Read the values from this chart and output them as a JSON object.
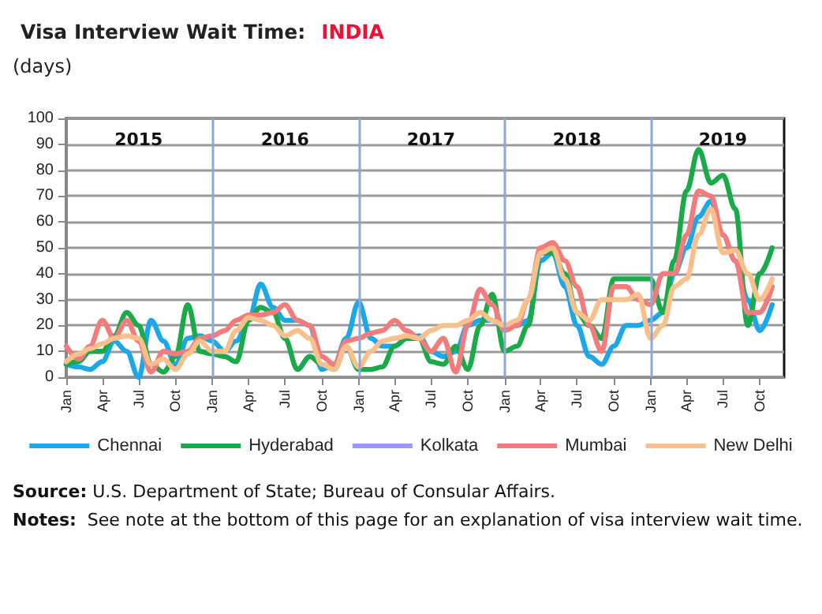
{
  "chart_data": {
    "type": "line",
    "title": "Visa Interview Wait Time:",
    "subtitle": "INDIA",
    "ylabel": "(days)",
    "x": [
      "2015-01",
      "2015-02",
      "2015-03",
      "2015-04",
      "2015-05",
      "2015-06",
      "2015-07",
      "2015-08",
      "2015-09",
      "2015-10",
      "2015-11",
      "2015-12",
      "2016-01",
      "2016-02",
      "2016-03",
      "2016-04",
      "2016-05",
      "2016-06",
      "2016-07",
      "2016-08",
      "2016-09",
      "2016-10",
      "2016-11",
      "2016-12",
      "2017-01",
      "2017-02",
      "2017-03",
      "2017-04",
      "2017-05",
      "2017-06",
      "2017-07",
      "2017-08",
      "2017-09",
      "2017-10",
      "2017-11",
      "2017-12",
      "2018-01",
      "2018-02",
      "2018-03",
      "2018-04",
      "2018-05",
      "2018-06",
      "2018-07",
      "2018-08",
      "2018-09",
      "2018-10",
      "2018-11",
      "2018-12",
      "2019-01",
      "2019-02",
      "2019-03",
      "2019-04",
      "2019-05",
      "2019-06",
      "2019-07",
      "2019-08",
      "2019-09",
      "2019-10",
      "2019-11"
    ],
    "series": [
      {
        "name": "Chennai",
        "color": "#1ba7e8",
        "values": [
          5,
          4,
          3,
          6,
          14,
          10,
          0,
          22,
          14,
          5,
          15,
          16,
          14,
          10,
          14,
          22,
          36,
          27,
          22,
          22,
          20,
          3,
          5,
          15,
          29,
          15,
          12,
          12,
          15,
          16,
          10,
          8,
          10,
          20,
          22,
          22,
          20,
          20,
          22,
          45,
          48,
          35,
          20,
          8,
          5,
          12,
          20,
          20,
          22,
          25,
          40,
          50,
          62,
          68,
          55,
          45,
          30,
          18,
          28
        ]
      },
      {
        "name": "Hyderabad",
        "color": "#1aaa4a",
        "values": [
          5,
          6,
          10,
          10,
          16,
          25,
          20,
          5,
          2,
          8,
          28,
          10,
          9,
          8,
          6,
          22,
          27,
          25,
          15,
          3,
          8,
          5,
          3,
          12,
          3,
          3,
          4,
          12,
          15,
          15,
          6,
          5,
          12,
          3,
          20,
          32,
          10,
          12,
          20,
          48,
          48,
          40,
          25,
          20,
          15,
          38,
          38,
          38,
          38,
          25,
          45,
          72,
          88,
          75,
          78,
          65,
          20,
          40,
          50
        ]
      },
      {
        "name": "Kolkata",
        "color": "#9999ff",
        "values": [
          null,
          null,
          null,
          null,
          null,
          null,
          null,
          null,
          null,
          null,
          null,
          null,
          null,
          null,
          null,
          null,
          null,
          null,
          null,
          null,
          null,
          null,
          null,
          null,
          null,
          null,
          null,
          null,
          null,
          null,
          null,
          null,
          null,
          null,
          null,
          null,
          null,
          null,
          null,
          null,
          null,
          null,
          null,
          null,
          null,
          null,
          null,
          null,
          null,
          null,
          null,
          null,
          null,
          null,
          null,
          null,
          null,
          null,
          null
        ]
      },
      {
        "name": "Mumbai",
        "color": "#f27c7c",
        "values": [
          12,
          7,
          12,
          22,
          15,
          22,
          14,
          2,
          10,
          9,
          10,
          15,
          16,
          18,
          22,
          24,
          24,
          25,
          28,
          22,
          20,
          8,
          5,
          14,
          15,
          17,
          18,
          22,
          18,
          15,
          10,
          15,
          2,
          20,
          34,
          28,
          18,
          20,
          30,
          50,
          52,
          45,
          35,
          20,
          10,
          35,
          35,
          30,
          28,
          40,
          40,
          55,
          72,
          70,
          55,
          45,
          25,
          25,
          35
        ]
      },
      {
        "name": "New Delhi",
        "color": "#f9c08c",
        "values": [
          6,
          9,
          11,
          13,
          15,
          16,
          15,
          5,
          7,
          3,
          9,
          14,
          10,
          10,
          18,
          23,
          22,
          20,
          16,
          18,
          15,
          5,
          3,
          12,
          4,
          10,
          14,
          15,
          16,
          15,
          18,
          20,
          20,
          22,
          25,
          22,
          20,
          22,
          30,
          48,
          50,
          38,
          25,
          22,
          30,
          30,
          30,
          32,
          15,
          20,
          35,
          38,
          55,
          65,
          48,
          49,
          40,
          30,
          38
        ]
      }
    ],
    "xlim": [
      "2015-01",
      "2019-12"
    ],
    "xticks": [
      {
        "value": "2015-01",
        "label": "Jan"
      },
      {
        "value": "2015-04",
        "label": "Apr"
      },
      {
        "value": "2015-07",
        "label": "Jul"
      },
      {
        "value": "2015-10",
        "label": "Oct"
      },
      {
        "value": "2016-01",
        "label": "Jan"
      },
      {
        "value": "2016-04",
        "label": "Apr"
      },
      {
        "value": "2016-07",
        "label": "Jul"
      },
      {
        "value": "2016-10",
        "label": "Oct"
      },
      {
        "value": "2017-01",
        "label": "Jan"
      },
      {
        "value": "2017-04",
        "label": "Apr"
      },
      {
        "value": "2017-07",
        "label": "Jul"
      },
      {
        "value": "2017-10",
        "label": "Oct"
      },
      {
        "value": "2018-01",
        "label": "Jan"
      },
      {
        "value": "2018-04",
        "label": "Apr"
      },
      {
        "value": "2018-07",
        "label": "Jul"
      },
      {
        "value": "2018-10",
        "label": "Oct"
      },
      {
        "value": "2019-01",
        "label": "Jan"
      },
      {
        "value": "2019-04",
        "label": "Apr"
      },
      {
        "value": "2019-07",
        "label": "Jul"
      },
      {
        "value": "2019-10",
        "label": "Oct"
      }
    ],
    "ylim": [
      0,
      100
    ],
    "yticks": [
      0,
      10,
      20,
      30,
      40,
      50,
      60,
      70,
      80,
      90,
      100
    ],
    "ref_lines": [
      {
        "axis": "x",
        "value": "2016-01",
        "color": "#8ea9d8"
      },
      {
        "axis": "x",
        "value": "2017-01",
        "color": "#8ea9d8"
      },
      {
        "axis": "x",
        "value": "2018-01",
        "color": "#8ea9d8"
      },
      {
        "axis": "x",
        "value": "2019-01",
        "color": "#8ea9d8"
      }
    ],
    "x2lim": [
      "2015-01",
      "2019-12"
    ],
    "x2ticks": [
      {
        "value": "2015-07",
        "label": "2015"
      },
      {
        "value": "2016-07",
        "label": "2016"
      },
      {
        "value": "2017-07",
        "label": "2017"
      },
      {
        "value": "2018-07",
        "label": "2018"
      },
      {
        "value": "2019-07",
        "label": "2019"
      }
    ],
    "annotations": [
      "Source: U.S. Department of State; Bureau of Consular Affairs.",
      "Notes:  See note at the bottom of this page for an explanation of visa interview wait time."
    ],
    "grid": "y",
    "legend": "bottom",
    "marker": "none",
    "line_style": "solid"
  }
}
